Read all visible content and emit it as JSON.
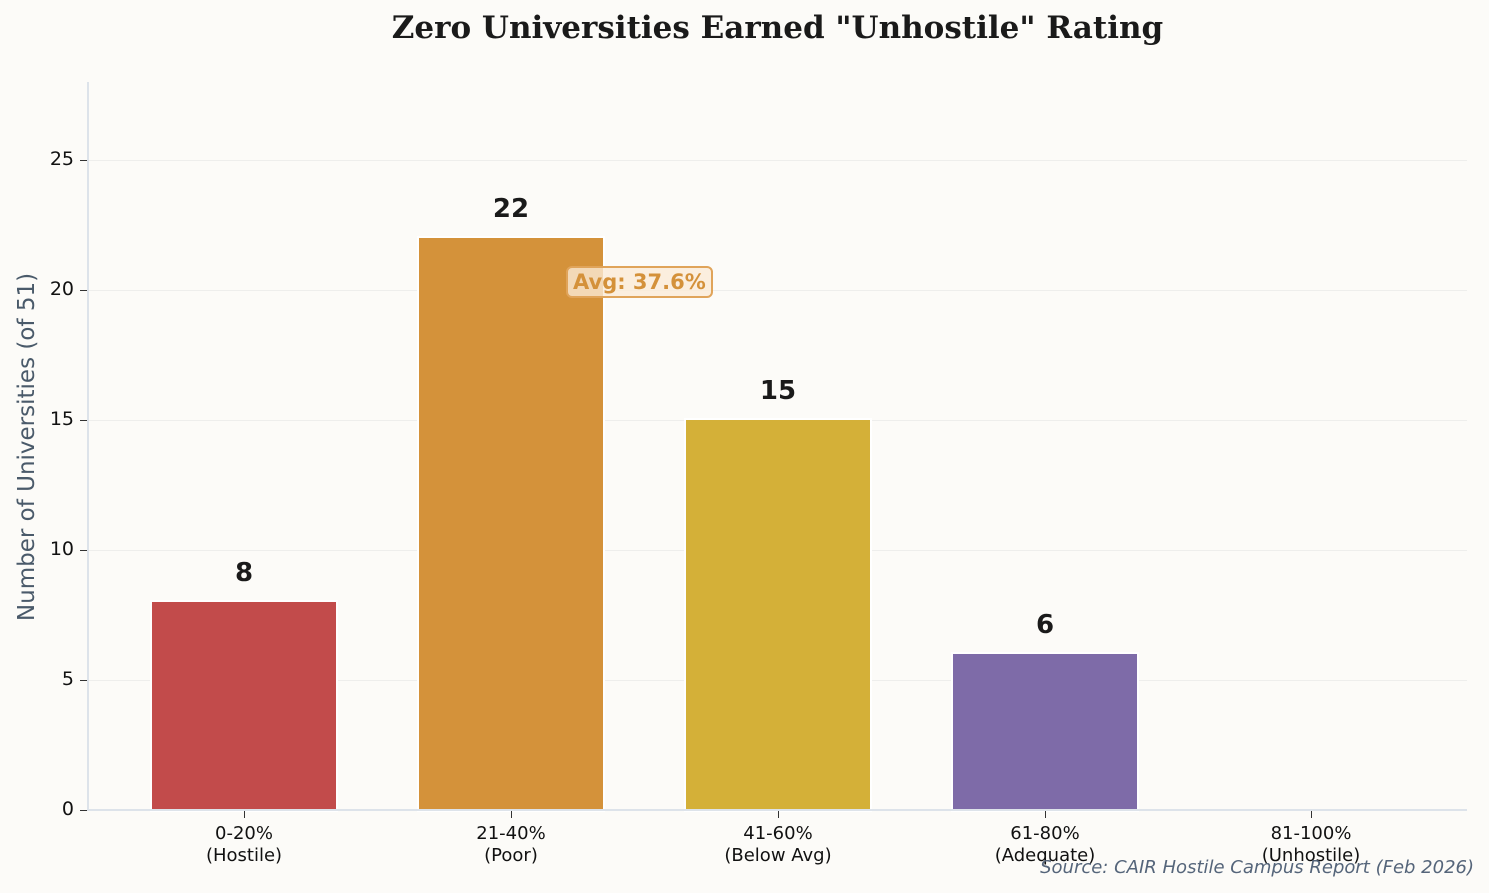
{
  "chart_data": {
    "type": "bar",
    "title": "Zero Universities Earned \"Unhostile\" Rating",
    "xlabel": "",
    "ylabel": "Number of Universities (of 51)",
    "ylim": [
      0,
      28
    ],
    "yticks": [
      0,
      5,
      10,
      15,
      20,
      25
    ],
    "grid": true,
    "categories": [
      "0-20%\n(Hostile)",
      "21-40%\n(Poor)",
      "41-60%\n(Below Avg)",
      "61-80%\n(Adequate)",
      "81-100%\n(Unhostile)"
    ],
    "category_ranges": [
      "0-20%",
      "21-40%",
      "41-60%",
      "61-80%",
      "81-100%"
    ],
    "category_labels": [
      "(Hostile)",
      "(Poor)",
      "(Below Avg)",
      "(Adequate)",
      "(Unhostile)"
    ],
    "values": [
      8,
      22,
      15,
      6,
      0
    ],
    "colors": [
      "#c24b4b",
      "#d4923a",
      "#d4b038",
      "#7e6ba8",
      "#cccccc"
    ],
    "value_labels": [
      "8",
      "22",
      "15",
      "6",
      ""
    ],
    "annotations": [
      {
        "text": "Avg: 37.6%",
        "color": "#d4913a"
      }
    ],
    "source": "Source: CAIR Hostile Campus Report (Feb 2026)"
  }
}
